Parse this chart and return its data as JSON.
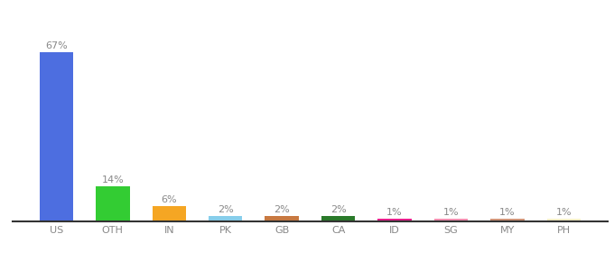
{
  "categories": [
    "US",
    "OTH",
    "IN",
    "PK",
    "GB",
    "CA",
    "ID",
    "SG",
    "MY",
    "PH"
  ],
  "values": [
    67,
    14,
    6,
    2,
    2,
    2,
    1,
    1,
    1,
    1
  ],
  "labels": [
    "67%",
    "14%",
    "6%",
    "2%",
    "2%",
    "2%",
    "1%",
    "1%",
    "1%",
    "1%"
  ],
  "bar_colors": [
    "#4d6ee0",
    "#33cc33",
    "#f5a623",
    "#87ceeb",
    "#c87941",
    "#2a7a2a",
    "#e91e8c",
    "#f48fb1",
    "#d2967a",
    "#f5f0c8"
  ],
  "background_color": "#ffffff",
  "ylim": [
    0,
    75
  ],
  "label_color": "#888888",
  "tick_color": "#888888",
  "bar_width": 0.6,
  "label_fontsize": 8,
  "tick_fontsize": 8
}
